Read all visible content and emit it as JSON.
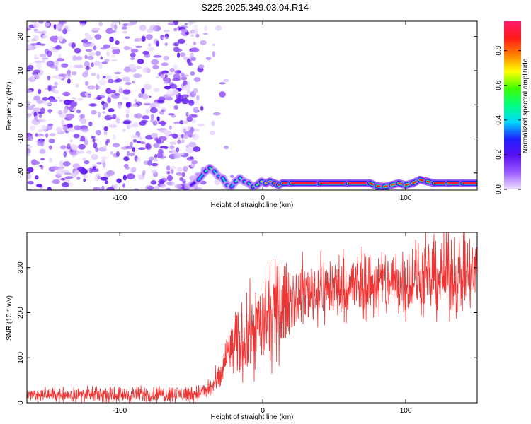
{
  "title": "S225.2025.349.03.04.R14",
  "chart_data": [
    {
      "type": "heatmap",
      "xlabel": "Height of straight line (km)",
      "ylabel": "Frequency (Hz)",
      "xlim": [
        -165,
        150
      ],
      "ylim": [
        -25,
        24.5
      ],
      "xticks": [
        -100,
        0,
        100
      ],
      "yticks": [
        -20,
        -10,
        0,
        10,
        20
      ],
      "colorbar": {
        "label": "Normalized spectral amplitude",
        "range": [
          0.0,
          0.97
        ],
        "ticks": [
          0.0,
          0.2,
          0.4,
          0.6,
          0.8
        ],
        "tick_labels": [
          "0.0",
          "0.2",
          "0.4",
          "0.6",
          "0.8"
        ],
        "colormap": [
          "#eee0ff",
          "#9b5cff",
          "#5a10f0",
          "#2020ff",
          "#00d8ff",
          "#00ff80",
          "#40ff00",
          "#ffff00",
          "#ff8000",
          "#ff1a1a",
          "#ff1a6e"
        ]
      },
      "noise_region": {
        "x_range": [
          -165,
          -45
        ],
        "y_range": [
          -25,
          24.5
        ],
        "amplitude_range": [
          0.0,
          0.2
        ]
      },
      "ridge": {
        "x": [
          -50,
          -45,
          -40,
          -37,
          -34,
          -31,
          -28,
          -25,
          -22,
          -19,
          -16,
          -13,
          -10,
          -7,
          -4,
          -1,
          2,
          5,
          8,
          11,
          14,
          20,
          40,
          60,
          75,
          80,
          85,
          90,
          95,
          100,
          105,
          110,
          115,
          120,
          130,
          140,
          150
        ],
        "y": [
          -23.5,
          -22,
          -19.5,
          -18.5,
          -19.5,
          -21,
          -21.5,
          -23.5,
          -24,
          -22.5,
          -21.5,
          -22.5,
          -23,
          -24,
          -23.5,
          -22.5,
          -23,
          -22.5,
          -23,
          -23.5,
          -23,
          -23,
          -23,
          -23,
          -23,
          -23.8,
          -24,
          -23.5,
          -23,
          -23.5,
          -23,
          -22,
          -22.5,
          -23,
          -23,
          -23,
          -23
        ],
        "amp": [
          0.15,
          0.3,
          0.45,
          0.55,
          0.45,
          0.4,
          0.35,
          0.5,
          0.3,
          0.45,
          0.5,
          0.45,
          0.4,
          0.5,
          0.55,
          0.6,
          0.7,
          0.8,
          0.85,
          0.88,
          0.9,
          0.92,
          0.9,
          0.93,
          0.9,
          0.85,
          0.9,
          0.8,
          0.85,
          0.85,
          0.88,
          0.9,
          0.85,
          0.88,
          0.9,
          0.92,
          0.9
        ]
      }
    },
    {
      "type": "line",
      "xlabel": "Height of straight line (km)",
      "ylabel": "SNR (10 * v/v)",
      "xlim": [
        -165,
        150
      ],
      "ylim": [
        0,
        378
      ],
      "xticks": [
        -100,
        0,
        100
      ],
      "yticks": [
        0,
        100,
        200,
        300
      ],
      "series": [
        {
          "color": "#ee3333",
          "trend_x": [
            -165,
            -100,
            -50,
            -40,
            -30,
            -25,
            -20,
            -15,
            -10,
            -5,
            0,
            5,
            10,
            15,
            20,
            30,
            50,
            75,
            100,
            125,
            150
          ],
          "trend_y": [
            18,
            18,
            20,
            25,
            50,
            110,
            125,
            135,
            145,
            170,
            175,
            185,
            200,
            220,
            235,
            245,
            255,
            262,
            272,
            280,
            285
          ],
          "noise_x": [
            -165,
            -40,
            -30,
            -20,
            -10,
            0,
            10,
            20,
            60,
            150
          ],
          "noise_amp": [
            9,
            12,
            20,
            45,
            55,
            60,
            65,
            45,
            45,
            55
          ]
        }
      ]
    }
  ]
}
